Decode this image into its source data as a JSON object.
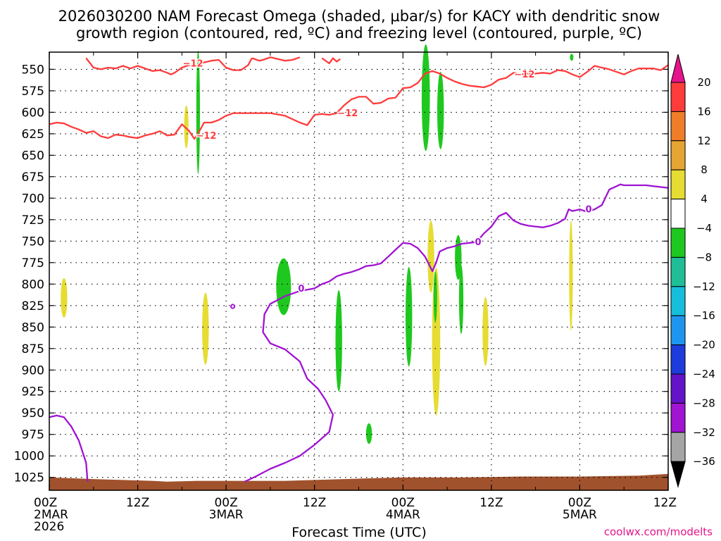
{
  "chart_data": {
    "type": "heatmap",
    "title_line1": "2026030200 NAM Forecast Omega (shaded, μbar/s) for KACY with dendritic snow",
    "title_line2": "growth region (contoured, red, ºC) and freezing level (contoured, purple, ºC)",
    "xlabel": "Forecast Time (UTC)",
    "credit": "coolwx.com/modelts",
    "x_ticks": [
      {
        "hour": 0,
        "line1": "00Z",
        "line2": "2MAR",
        "line3": "2026"
      },
      {
        "hour": 12,
        "line1": "12Z",
        "line2": "",
        "line3": ""
      },
      {
        "hour": 24,
        "line1": "00Z",
        "line2": "3MAR",
        "line3": ""
      },
      {
        "hour": 36,
        "line1": "12Z",
        "line2": "",
        "line3": ""
      },
      {
        "hour": 48,
        "line1": "00Z",
        "line2": "4MAR",
        "line3": ""
      },
      {
        "hour": 60,
        "line1": "12Z",
        "line2": "",
        "line3": ""
      },
      {
        "hour": 72,
        "line1": "00Z",
        "line2": "5MAR",
        "line3": ""
      },
      {
        "hour": 84,
        "line1": "12Z",
        "line2": "",
        "line3": ""
      }
    ],
    "x_range_hours": [
      0,
      84
    ],
    "y_ticks": [
      550,
      575,
      600,
      625,
      650,
      675,
      700,
      725,
      750,
      775,
      800,
      825,
      850,
      875,
      900,
      925,
      950,
      975,
      1000,
      1025
    ],
    "y_range_mb": [
      530,
      1040
    ],
    "grid": true,
    "colorbar": {
      "labels": [
        "20",
        "16",
        "12",
        "8",
        "4",
        "−4",
        "−8",
        "−12",
        "−16",
        "−20",
        "−24",
        "−28",
        "−32",
        "−36"
      ],
      "colors": [
        "#ff3c3c",
        "#f07d28",
        "#e6a532",
        "#e6dc32",
        "#ffffff",
        "#1fc81f",
        "#1fbe96",
        "#17bedc",
        "#1e96f0",
        "#1e3cdc",
        "#6414c8",
        "#a014d2",
        "#a5a5a5"
      ],
      "top_arrow_color": "#e6148c",
      "bottom_arrow_color": "#000000"
    },
    "contour_labels": {
      "dgz": "−12",
      "freezing": "0"
    },
    "series": [
      {
        "color": "#ff3c3c",
        "points": [
          [
            0,
            614
          ],
          [
            1,
            612
          ],
          [
            2,
            613
          ],
          [
            3,
            617
          ],
          [
            4,
            620
          ],
          [
            5,
            624
          ],
          [
            6,
            622
          ],
          [
            7,
            628
          ],
          [
            8,
            630
          ],
          [
            9,
            626
          ],
          [
            10,
            627
          ],
          [
            11,
            629
          ],
          [
            12,
            630
          ],
          [
            13,
            627
          ],
          [
            14,
            625
          ],
          [
            15,
            622
          ],
          [
            16,
            627
          ],
          [
            17,
            626
          ],
          [
            18,
            614
          ],
          [
            19,
            622
          ],
          [
            19.7,
            631
          ],
          [
            20.5,
            620
          ],
          [
            21,
            612
          ],
          [
            22,
            612
          ],
          [
            23,
            609
          ],
          [
            24,
            604
          ],
          [
            25,
            601
          ],
          [
            26,
            601
          ],
          [
            28,
            601
          ],
          [
            30,
            601
          ],
          [
            32,
            604
          ],
          [
            34,
            612
          ],
          [
            35,
            615
          ],
          [
            36,
            603
          ],
          [
            37,
            602
          ],
          [
            38,
            603
          ],
          [
            39,
            601
          ],
          [
            40,
            592
          ],
          [
            41,
            585
          ],
          [
            42,
            582
          ],
          [
            43,
            582
          ],
          [
            44,
            590
          ],
          [
            45,
            589
          ],
          [
            46,
            584
          ],
          [
            47,
            583
          ],
          [
            48,
            572
          ],
          [
            49,
            571
          ],
          [
            50,
            566
          ],
          [
            51,
            555
          ],
          [
            52,
            552
          ],
          [
            53,
            555
          ],
          [
            54,
            560
          ],
          [
            55,
            564
          ],
          [
            56,
            567
          ],
          [
            57,
            569
          ],
          [
            58,
            570
          ],
          [
            59,
            571
          ],
          [
            60,
            568
          ],
          [
            61,
            562
          ],
          [
            62,
            560
          ],
          [
            63,
            554
          ],
          [
            64,
            556
          ],
          [
            65,
            555
          ],
          [
            66,
            555
          ],
          [
            67,
            554
          ],
          [
            68,
            555
          ],
          [
            69,
            551
          ],
          [
            70,
            552
          ],
          [
            71,
            556
          ],
          [
            72,
            559
          ],
          [
            73,
            553
          ],
          [
            74,
            546
          ],
          [
            75,
            548
          ],
          [
            76,
            550
          ],
          [
            77,
            553
          ],
          [
            78,
            556
          ],
          [
            79,
            552
          ],
          [
            80,
            549
          ],
          [
            81,
            549
          ],
          [
            82,
            549
          ],
          [
            83,
            551
          ],
          [
            84,
            545
          ]
        ]
      },
      {
        "color": "#ff3c3c",
        "points": [
          [
            5,
            537
          ],
          [
            6,
            548
          ],
          [
            7,
            550
          ],
          [
            8,
            548
          ],
          [
            9,
            549
          ],
          [
            10,
            546
          ],
          [
            11,
            549
          ],
          [
            12,
            546
          ],
          [
            13,
            549
          ],
          [
            14,
            552
          ],
          [
            15,
            551
          ],
          [
            16,
            554
          ],
          [
            16.5,
            556
          ],
          [
            17,
            554
          ],
          [
            18,
            548
          ],
          [
            19,
            545
          ],
          [
            20,
            545
          ],
          [
            21,
            542
          ],
          [
            22,
            540
          ],
          [
            23,
            539
          ],
          [
            24,
            548
          ],
          [
            25,
            551
          ],
          [
            26,
            551
          ],
          [
            27,
            545
          ],
          [
            27.5,
            537
          ]
        ]
      },
      {
        "color": "#ff3c3c",
        "points": [
          [
            27.5,
            537
          ],
          [
            28.5,
            540
          ],
          [
            29,
            539
          ],
          [
            30,
            536
          ],
          [
            31,
            538
          ],
          [
            32,
            540
          ],
          [
            33,
            539
          ],
          [
            34,
            536
          ]
        ]
      },
      {
        "color": "#ff3c3c",
        "points": [
          [
            37,
            537
          ],
          [
            38,
            543
          ],
          [
            38.5,
            537
          ],
          [
            39,
            541
          ],
          [
            39.5,
            538
          ]
        ]
      },
      {
        "color": "#a014d2",
        "points": [
          [
            0,
            955
          ],
          [
            1,
            953
          ],
          [
            2,
            955
          ],
          [
            3,
            966
          ],
          [
            4,
            982
          ],
          [
            5,
            1008
          ],
          [
            5.2,
            1030
          ]
        ]
      },
      {
        "color": "#a014d2",
        "points": [
          [
            26.5,
            1030
          ],
          [
            28,
            1024
          ],
          [
            30,
            1015
          ],
          [
            32,
            1008
          ],
          [
            34,
            1000
          ],
          [
            36,
            987
          ],
          [
            38,
            972
          ],
          [
            38.5,
            952
          ],
          [
            37.5,
            935
          ],
          [
            36.5,
            922
          ],
          [
            35,
            910
          ],
          [
            34,
            890
          ],
          [
            32,
            876
          ],
          [
            30,
            869
          ],
          [
            29,
            856
          ],
          [
            29.2,
            835
          ],
          [
            30,
            823
          ],
          [
            32,
            814
          ],
          [
            34,
            808
          ],
          [
            36,
            805
          ],
          [
            37,
            800
          ],
          [
            38,
            797
          ],
          [
            39,
            791
          ],
          [
            40,
            788
          ],
          [
            41,
            786
          ],
          [
            42,
            783
          ],
          [
            43,
            779
          ],
          [
            44,
            778
          ],
          [
            45,
            776
          ],
          [
            46,
            768
          ],
          [
            47,
            760
          ],
          [
            48,
            752
          ],
          [
            49,
            753
          ],
          [
            50,
            758
          ],
          [
            51,
            768
          ],
          [
            52,
            785
          ],
          [
            52.5,
            775
          ],
          [
            53,
            762
          ],
          [
            54,
            758
          ],
          [
            55,
            756
          ],
          [
            56,
            753
          ],
          [
            57,
            752
          ],
          [
            58,
            751
          ],
          [
            59,
            741
          ],
          [
            60,
            733
          ],
          [
            61,
            721
          ],
          [
            62,
            717
          ],
          [
            63,
            726
          ],
          [
            64,
            730
          ],
          [
            65,
            732
          ],
          [
            66,
            733
          ],
          [
            67,
            734
          ],
          [
            68,
            732
          ],
          [
            69,
            729
          ],
          [
            70,
            724
          ],
          [
            70.5,
            713
          ],
          [
            71,
            715
          ],
          [
            72,
            713
          ],
          [
            73,
            716
          ],
          [
            74,
            713
          ],
          [
            75,
            708
          ],
          [
            75.5,
            699
          ],
          [
            76,
            690
          ],
          [
            77,
            686
          ],
          [
            77.5,
            684
          ],
          [
            78,
            685
          ],
          [
            79,
            685
          ],
          [
            80,
            685
          ],
          [
            81,
            685
          ],
          [
            82,
            686
          ],
          [
            83,
            687
          ],
          [
            84,
            688
          ]
        ]
      }
    ]
  }
}
